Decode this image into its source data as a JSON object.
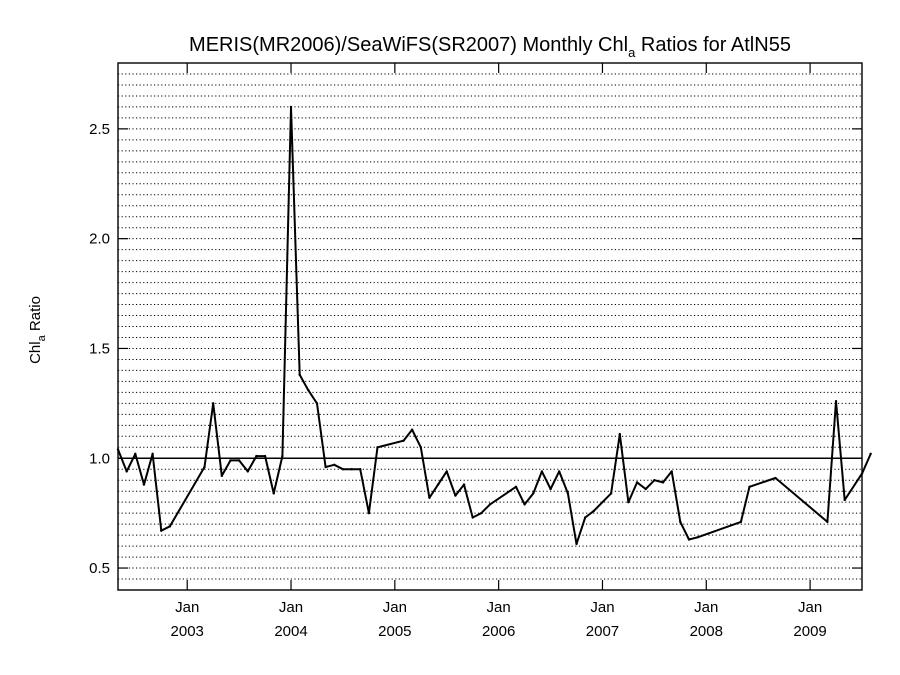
{
  "chart_data": {
    "type": "line",
    "title": {
      "main": "MERIS(MR2006)/SeaWiFS(SR2007) Monthly Chl",
      "subscript": "a",
      "suffix": " Ratios for AtlN55"
    },
    "ylabel": {
      "main": "Chl",
      "subscript": "a",
      "suffix": " Ratio"
    },
    "xlabel": "",
    "ylim": [
      0.4,
      2.8
    ],
    "xlim": [
      "2002-05",
      "2009-07"
    ],
    "y_ticks": [
      {
        "value": 0.5,
        "label": "0.5"
      },
      {
        "value": 1.0,
        "label": "1.0"
      },
      {
        "value": 1.5,
        "label": "1.5"
      },
      {
        "value": 2.0,
        "label": "2.0"
      },
      {
        "value": 2.5,
        "label": "2.5"
      }
    ],
    "x_ticks": [
      {
        "date": "2003-01",
        "month_label": "Jan",
        "year_label": "2003"
      },
      {
        "date": "2004-01",
        "month_label": "Jan",
        "year_label": "2004"
      },
      {
        "date": "2005-01",
        "month_label": "Jan",
        "year_label": "2005"
      },
      {
        "date": "2006-01",
        "month_label": "Jan",
        "year_label": "2006"
      },
      {
        "date": "2007-01",
        "month_label": "Jan",
        "year_label": "2007"
      },
      {
        "date": "2008-01",
        "month_label": "Jan",
        "year_label": "2008"
      },
      {
        "date": "2009-01",
        "month_label": "Jan",
        "year_label": "2009"
      }
    ],
    "grid": {
      "horizontal": true,
      "style": "dotted",
      "step": 0.05
    },
    "reference_line": 1.0,
    "colors": {
      "line": "#000000",
      "grid": "#000000",
      "background": "#ffffff"
    },
    "series": [
      {
        "x": [
          "2002-05",
          "2002-06",
          "2002-07",
          "2002-08",
          "2002-09",
          "2002-10",
          "2002-11",
          "2003-03",
          "2003-04",
          "2003-05",
          "2003-06",
          "2003-07",
          "2003-08",
          "2003-09",
          "2003-10",
          "2003-11",
          "2003-12",
          "2004-01",
          "2004-02",
          "2004-03",
          "2004-04",
          "2004-05",
          "2004-06",
          "2004-07",
          "2004-08",
          "2004-09",
          "2004-10",
          "2004-11",
          "2005-02",
          "2005-03",
          "2005-04",
          "2005-05",
          "2005-06",
          "2005-07",
          "2005-08",
          "2005-09",
          "2005-10",
          "2005-11",
          "2005-12",
          "2006-03",
          "2006-04",
          "2006-05",
          "2006-06",
          "2006-07",
          "2006-08",
          "2006-09",
          "2006-10",
          "2006-11",
          "2006-12",
          "2007-02",
          "2007-03",
          "2007-04",
          "2007-05",
          "2007-06",
          "2007-07",
          "2007-08",
          "2007-09",
          "2007-10",
          "2007-11",
          "2007-12",
          "2008-05",
          "2008-06",
          "2008-09",
          "2009-03",
          "2009-04",
          "2009-05",
          "2009-07",
          "2009-08"
        ],
        "y": [
          1.04,
          0.94,
          1.02,
          0.88,
          1.02,
          0.67,
          0.69,
          0.96,
          1.25,
          0.92,
          0.99,
          0.99,
          0.94,
          1.01,
          1.01,
          0.84,
          1.01,
          2.6,
          1.38,
          1.31,
          1.25,
          0.96,
          0.97,
          0.95,
          0.95,
          0.95,
          0.75,
          1.05,
          1.08,
          1.13,
          1.05,
          0.82,
          0.88,
          0.94,
          0.83,
          0.88,
          0.73,
          0.75,
          0.79,
          0.87,
          0.79,
          0.84,
          0.94,
          0.86,
          0.94,
          0.84,
          0.61,
          0.73,
          0.76,
          0.84,
          1.11,
          0.8,
          0.89,
          0.86,
          0.9,
          0.89,
          0.94,
          0.71,
          0.63,
          0.64,
          0.71,
          0.87,
          0.91,
          0.71,
          1.26,
          0.81,
          0.93,
          1.02
        ]
      }
    ]
  }
}
